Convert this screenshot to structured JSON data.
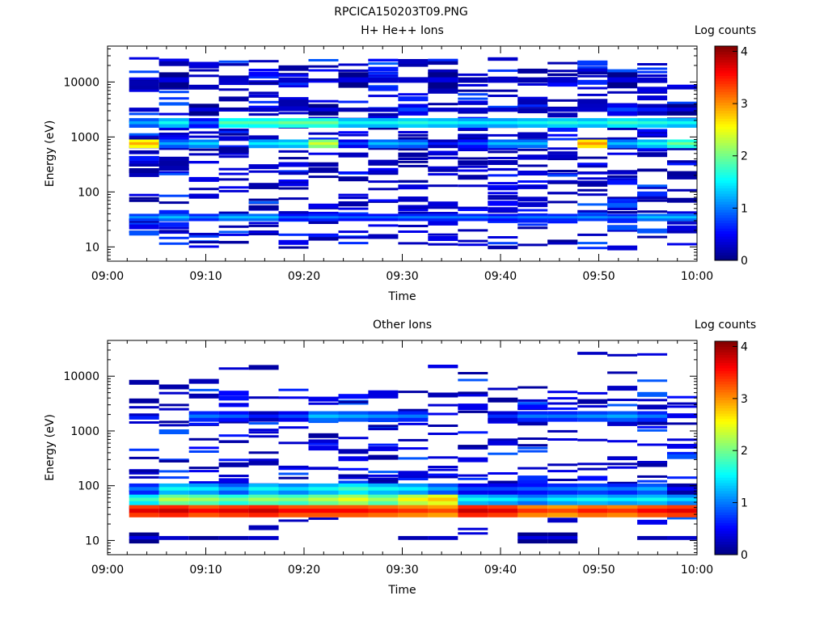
{
  "figure_title": "RPCICA150203T09.PNG",
  "chart_data": [
    {
      "type": "heatmap",
      "title": "H+ He++ Ions",
      "xlabel": "Time",
      "ylabel": "Energy (eV)",
      "colorbar_label": "Log counts",
      "x_ticks": [
        "09:00",
        "09:10",
        "09:20",
        "09:30",
        "09:40",
        "09:50",
        "10:00"
      ],
      "xlim_minutes": [
        0,
        60
      ],
      "y_ticks": [
        "10",
        "100",
        "1000",
        "10000"
      ],
      "y_scale": "log",
      "ylim": [
        5.5,
        45000
      ],
      "colorbar_ticks": [
        "0",
        "1",
        "2",
        "3",
        "4"
      ],
      "clim": [
        0,
        4.1
      ],
      "colormap": [
        "#00007f",
        "#0000ff",
        "#007fff",
        "#00ffff",
        "#7fff7f",
        "#ffff00",
        "#ff7f00",
        "#ff0000",
        "#7f0000"
      ],
      "grid": false,
      "rows": [
        {
          "energy": [
            30,
            40
          ],
          "values": [
            1.1,
            1.3,
            1.0,
            1.3,
            1.3,
            0.9,
            1.0,
            0.9,
            0.9,
            1.0,
            1.0,
            1.0,
            0.9,
            1.0,
            1.0,
            1.1,
            1.0,
            1.3,
            1.3
          ]
        },
        {
          "energy": [
            640,
            900
          ],
          "values": [
            2.9,
            1.2,
            1.4,
            0,
            1.5,
            1.6,
            2.4,
            0.8,
            1.3,
            1.2,
            0.6,
            0.9,
            1.3,
            1.3,
            0,
            3.0,
            1.3,
            1.6,
            2.0
          ]
        },
        {
          "energy": [
            1500,
            2200
          ],
          "values": [
            1.2,
            1.6,
            0.9,
            1.9,
            1.9,
            2.0,
            2.0,
            1.6,
            1.6,
            1.7,
            1.6,
            1.5,
            1.5,
            1.6,
            1.7,
            1.6,
            1.8,
            1.7,
            1.6
          ]
        },
        {
          "energy": [
            2500,
            4000
          ],
          "values": [
            0.3,
            0,
            0.4,
            0,
            0.3,
            0,
            0.4,
            0.2,
            0.3,
            0.8,
            0.3,
            0.3,
            0.3,
            0.2,
            0.3,
            0.3,
            0.8,
            0.6,
            0.4
          ]
        },
        {
          "energy": [
            8000,
            15000
          ],
          "values": [
            0,
            0.4,
            0,
            0.3,
            0,
            0.3,
            0,
            0.4,
            0.3,
            0.3,
            0.4,
            0.2,
            0.3,
            0.2,
            0.3,
            0,
            0.4,
            0.3,
            0
          ]
        }
      ]
    },
    {
      "type": "heatmap",
      "title": "Other Ions",
      "xlabel": "Time",
      "ylabel": "Energy (eV)",
      "colorbar_label": "Log counts",
      "x_ticks": [
        "09:00",
        "09:10",
        "09:20",
        "09:30",
        "09:40",
        "09:50",
        "10:00"
      ],
      "xlim_minutes": [
        0,
        60
      ],
      "y_ticks": [
        "10",
        "100",
        "1000",
        "10000"
      ],
      "y_scale": "log",
      "ylim": [
        5.5,
        45000
      ],
      "colorbar_ticks": [
        "0",
        "1",
        "2",
        "3",
        "4"
      ],
      "clim": [
        0,
        4.1
      ],
      "grid": false,
      "rows": [
        {
          "energy": [
            27,
            45
          ],
          "values": [
            3.7,
            3.8,
            3.6,
            3.7,
            3.8,
            3.6,
            3.6,
            3.6,
            3.5,
            3.4,
            3.3,
            3.8,
            3.7,
            3.4,
            3.3,
            3.5,
            3.4,
            3.6,
            3.7
          ]
        },
        {
          "energy": [
            45,
            70
          ],
          "values": [
            1.8,
            2.3,
            2.2,
            2.0,
            2.2,
            2.1,
            2.3,
            2.5,
            2.2,
            2.6,
            2.8,
            1.6,
            1.5,
            1.3,
            1.5,
            1.6,
            1.5,
            1.6,
            1.4
          ]
        },
        {
          "energy": [
            70,
            110
          ],
          "values": [
            1.0,
            1.6,
            1.5,
            1.2,
            1.6,
            1.4,
            1.6,
            1.8,
            1.6,
            1.5,
            1.2,
            0.8,
            0.8,
            0.9,
            1.0,
            1.1,
            1.0,
            1.2,
            0.5
          ]
        },
        {
          "energy": [
            1500,
            2300
          ],
          "values": [
            0,
            0,
            1.0,
            0.9,
            0.6,
            0.8,
            1.3,
            1.2,
            1.1,
            1.0,
            0,
            0,
            0.7,
            1.0,
            1.0,
            1.1,
            1.2,
            1.0,
            0
          ]
        },
        {
          "energy": [
            9,
            14
          ],
          "values": [
            0.4,
            0.3,
            0.1,
            0.2,
            0.3,
            0,
            0,
            0,
            0,
            0.2,
            0.3,
            0,
            0,
            0.4,
            0.4,
            0,
            0,
            0.2,
            0.3
          ]
        }
      ]
    }
  ]
}
